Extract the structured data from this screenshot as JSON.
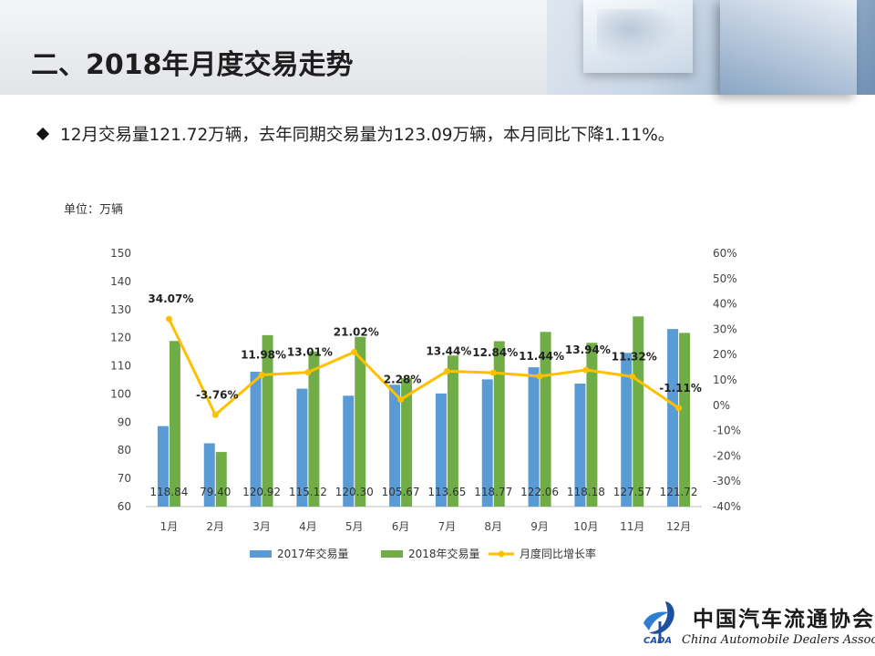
{
  "header": {
    "title": "二、2018年月度交易走势"
  },
  "summary": {
    "text": "12月交易量121.72万辆，去年同期交易量为123.09万辆，本月同比下降1.11%。"
  },
  "unit_label": "单位：万辆",
  "logo": {
    "cn_name": "中国汽车流通协会",
    "en_name": "China Automobile Dealers Association",
    "abbr": "CADA"
  },
  "colors": {
    "series_2017": "#5b9bd5",
    "series_2018": "#70ad47",
    "series_growth": "#ffc000"
  },
  "chart_data": {
    "type": "bar",
    "categories": [
      "1月",
      "2月",
      "3月",
      "4月",
      "5月",
      "6月",
      "7月",
      "8月",
      "9月",
      "10月",
      "11月",
      "12月"
    ],
    "series": [
      {
        "name": "2017年交易量",
        "type": "bar",
        "axis": "left",
        "values": [
          88.6,
          82.5,
          107.9,
          101.9,
          99.4,
          103.3,
          100.2,
          105.2,
          109.5,
          103.7,
          114.6,
          123.09
        ]
      },
      {
        "name": "2018年交易量",
        "type": "bar",
        "axis": "left",
        "values": [
          118.84,
          79.4,
          120.92,
          115.12,
          120.3,
          105.67,
          113.65,
          118.77,
          122.06,
          118.18,
          127.57,
          121.72
        ],
        "labels": [
          "118.84",
          "79.40",
          "120.92",
          "115.12",
          "120.30",
          "105.67",
          "113.65",
          "118.77",
          "122.06",
          "118.18",
          "127.57",
          "121.72"
        ]
      },
      {
        "name": "月度同比增长率",
        "type": "line",
        "axis": "right",
        "values": [
          34.07,
          -3.76,
          11.98,
          13.01,
          21.02,
          2.28,
          13.44,
          12.84,
          11.44,
          13.94,
          11.32,
          -1.11
        ],
        "labels": [
          "34.07%",
          "-3.76%",
          "11.98%",
          "13.01%",
          "21.02%",
          "2.28%",
          "13.44%",
          "12.84%",
          "11.44%",
          "13.94%",
          "11.32%",
          "-1.11%"
        ]
      }
    ],
    "y_left": {
      "min": 60,
      "max": 150,
      "step": 10,
      "ticks": [
        "60",
        "70",
        "80",
        "90",
        "100",
        "110",
        "120",
        "130",
        "140",
        "150"
      ]
    },
    "y_right": {
      "min": -40,
      "max": 60,
      "step": 10,
      "ticks": [
        "-40%",
        "-30%",
        "-20%",
        "-10%",
        "0%",
        "10%",
        "20%",
        "30%",
        "40%",
        "50%",
        "60%"
      ]
    },
    "legend": {
      "position": "bottom"
    },
    "grid": false
  }
}
